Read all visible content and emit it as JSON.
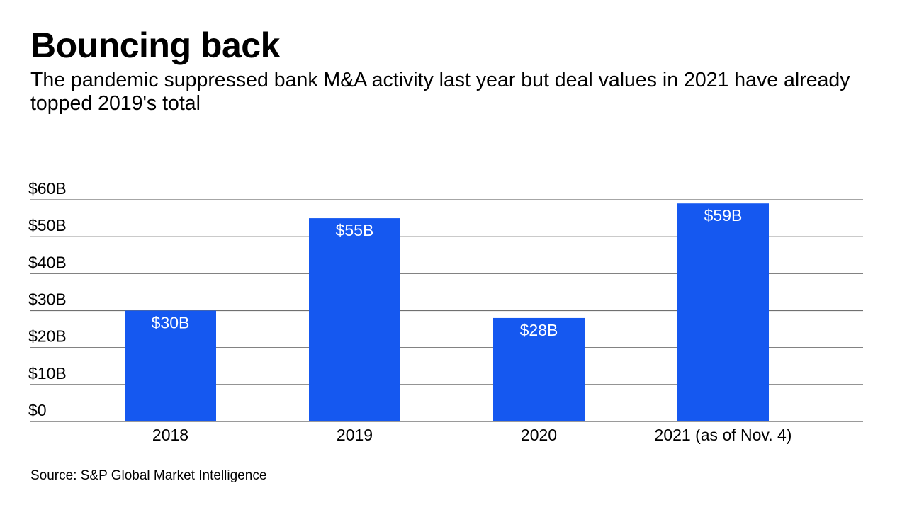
{
  "chart_data": {
    "type": "bar",
    "title": "Bouncing back",
    "subtitle": "The pandemic suppressed bank M&A activity last year but deal values in 2021 have already topped 2019's total",
    "categories": [
      "2018",
      "2019",
      "2020",
      "2021 (as of Nov. 4)"
    ],
    "values": [
      30,
      55,
      28,
      59
    ],
    "data_labels": [
      "$30B",
      "$55B",
      "$28B",
      "$59B"
    ],
    "xlabel": "",
    "ylabel": "",
    "ylim": [
      0,
      60
    ],
    "yticks": [
      0,
      10,
      20,
      30,
      40,
      50,
      60
    ],
    "ytick_labels": [
      "$0",
      "$10B",
      "$20B",
      "$30B",
      "$40B",
      "$50B",
      "$60B"
    ],
    "grid": true,
    "legend": "none",
    "bar_color": "#1558F0",
    "source": "Source: S&P Global Market Intelligence"
  }
}
